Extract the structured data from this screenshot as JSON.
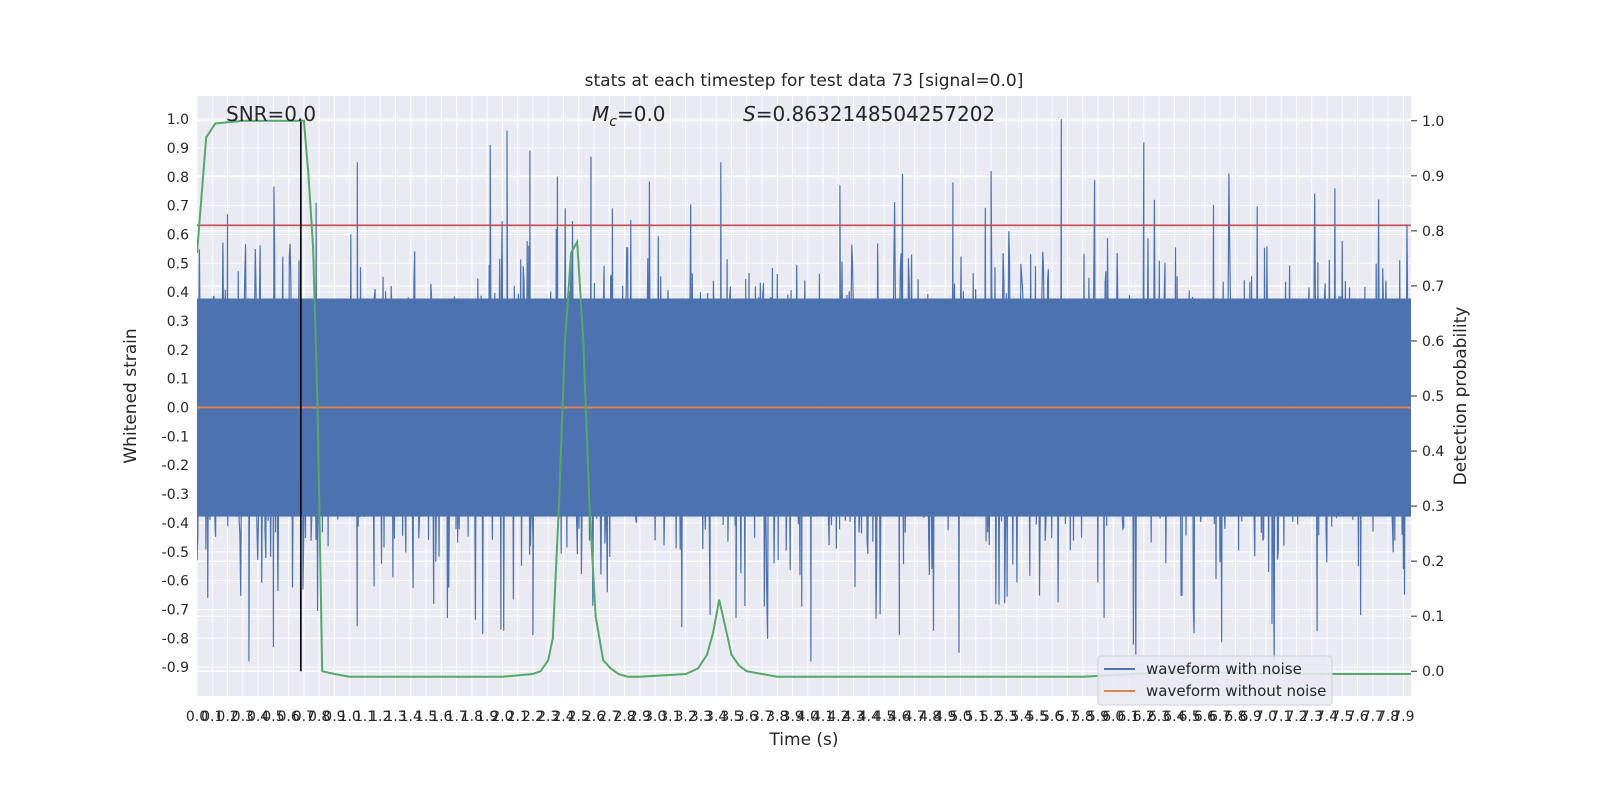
{
  "chart_data": {
    "type": "line",
    "title": "stats at each timestep for test data 73 [signal=0.0]",
    "xlabel": "Time (s)",
    "ylabel": "Whitened strain",
    "y2label": "Detection probability",
    "annotations": {
      "snr": "SNR=0.0",
      "mc_symbol": "M",
      "mc_sub": "c",
      "mc_value": "=0.0",
      "s_symbol": "S",
      "s_value": "=0.8632148504257202"
    },
    "xlim": [
      0.0,
      7.95
    ],
    "ylim": [
      -1.0,
      1.08
    ],
    "y2lim": [
      -0.045,
      1.045
    ],
    "grid": true,
    "legend": {
      "position": "bottom-right",
      "entries": [
        "waveform with noise",
        "waveform without noise"
      ]
    },
    "x_ticks": [
      "0.0",
      "0.1",
      "0.2",
      "0.3",
      "0.4",
      "0.5",
      "0.6",
      "0.7",
      "0.8",
      "0.9",
      "1.0",
      "1.1",
      "1.2",
      "1.3",
      "1.4",
      "1.5",
      "1.6",
      "1.7",
      "1.8",
      "1.9",
      "2.0",
      "2.1",
      "2.2",
      "2.3",
      "2.4",
      "2.5",
      "2.6",
      "2.7",
      "2.8",
      "2.9",
      "3.0",
      "3.1",
      "3.2",
      "3.3",
      "3.4",
      "3.5",
      "3.6",
      "3.7",
      "3.8",
      "3.9",
      "4.0",
      "4.1",
      "4.2",
      "4.3",
      "4.4",
      "4.5",
      "4.6",
      "4.7",
      "4.8",
      "4.9",
      "5.0",
      "5.1",
      "5.2",
      "5.3",
      "5.4",
      "5.5",
      "5.6",
      "5.7",
      "5.8",
      "5.9",
      "6.0",
      "6.1",
      "6.2",
      "6.3",
      "6.4",
      "6.5",
      "6.6",
      "6.7",
      "6.8",
      "6.9",
      "7.0",
      "7.1",
      "7.2",
      "7.3",
      "7.4",
      "7.5",
      "7.6",
      "7.7",
      "7.8",
      "7.9"
    ],
    "y_ticks": [
      "-0.9",
      "-0.8",
      "-0.7",
      "-0.6",
      "-0.5",
      "-0.4",
      "-0.3",
      "-0.2",
      "-0.1",
      "0.0",
      "0.1",
      "0.2",
      "0.3",
      "0.4",
      "0.5",
      "0.6",
      "0.7",
      "0.8",
      "0.9",
      "1.0"
    ],
    "y2_ticks": [
      "0.0",
      "0.1",
      "0.2",
      "0.3",
      "0.4",
      "0.5",
      "0.6",
      "0.7",
      "0.8",
      "0.9",
      "1.0"
    ],
    "series": [
      {
        "name": "waveform with noise",
        "color": "#4c72b0",
        "kind": "noise-envelope",
        "envelope_core": [
          -0.42,
          0.42
        ],
        "peaks": [
          {
            "t": 0.0,
            "v": -0.53
          },
          {
            "t": 0.07,
            "v": -0.66
          },
          {
            "t": 0.2,
            "v": 0.67
          },
          {
            "t": 0.34,
            "v": -0.88
          },
          {
            "t": 0.5,
            "v": -0.83
          },
          {
            "t": 0.68,
            "v": -0.75
          },
          {
            "t": 0.78,
            "v": 0.71
          },
          {
            "t": 1.05,
            "v": 0.85
          },
          {
            "t": 1.16,
            "v": -0.62
          },
          {
            "t": 1.55,
            "v": -0.68
          },
          {
            "t": 1.64,
            "v": -0.73
          },
          {
            "t": 1.92,
            "v": 0.91
          },
          {
            "t": 1.99,
            "v": -0.77
          },
          {
            "t": 2.03,
            "v": 0.96
          },
          {
            "t": 2.18,
            "v": 0.89
          },
          {
            "t": 2.2,
            "v": -0.79
          },
          {
            "t": 2.36,
            "v": 0.8
          },
          {
            "t": 2.58,
            "v": 0.87
          },
          {
            "t": 2.72,
            "v": 0.69
          },
          {
            "t": 3.36,
            "v": -0.72
          },
          {
            "t": 3.43,
            "v": 0.85
          },
          {
            "t": 3.53,
            "v": -0.73
          },
          {
            "t": 3.96,
            "v": -0.69
          },
          {
            "t": 4.02,
            "v": -0.88
          },
          {
            "t": 4.21,
            "v": 0.77
          },
          {
            "t": 4.6,
            "v": -0.79
          },
          {
            "t": 4.62,
            "v": 0.81
          },
          {
            "t": 4.95,
            "v": 0.78
          },
          {
            "t": 4.99,
            "v": -0.85
          },
          {
            "t": 5.2,
            "v": 0.82
          },
          {
            "t": 5.66,
            "v": 1.0
          },
          {
            "t": 5.94,
            "v": -0.73
          },
          {
            "t": 6.2,
            "v": 0.92
          },
          {
            "t": 7.04,
            "v": -0.75
          },
          {
            "t": 7.62,
            "v": -0.72
          },
          {
            "t": 7.9,
            "v": -0.56
          }
        ]
      },
      {
        "name": "waveform without noise",
        "color": "#dd8452",
        "x": [
          0.0,
          7.95
        ],
        "y": [
          0.0,
          0.0
        ]
      },
      {
        "name": "",
        "axis": "right",
        "color": "#55a868",
        "x": [
          0.0,
          0.06,
          0.12,
          0.3,
          0.5,
          0.68,
          0.7,
          0.73,
          0.76,
          0.79,
          0.82,
          0.9,
          1.0,
          1.5,
          2.0,
          2.2,
          2.25,
          2.3,
          2.33,
          2.37,
          2.41,
          2.45,
          2.49,
          2.53,
          2.57,
          2.61,
          2.66,
          2.71,
          2.76,
          2.82,
          2.9,
          3.2,
          3.28,
          3.34,
          3.38,
          3.42,
          3.46,
          3.5,
          3.55,
          3.6,
          3.7,
          3.8,
          4.2,
          5.0,
          5.8,
          6.5,
          7.0,
          7.5,
          7.95
        ],
        "y": [
          0.76,
          0.97,
          0.995,
          1.0,
          1.0,
          1.0,
          1.0,
          0.9,
          0.77,
          0.48,
          0.0,
          -0.005,
          -0.01,
          -0.01,
          -0.01,
          -0.005,
          0.0,
          0.02,
          0.06,
          0.3,
          0.6,
          0.76,
          0.78,
          0.6,
          0.3,
          0.1,
          0.02,
          0.005,
          -0.005,
          -0.01,
          -0.01,
          -0.005,
          0.005,
          0.03,
          0.07,
          0.13,
          0.08,
          0.03,
          0.01,
          0.0,
          -0.005,
          -0.01,
          -0.01,
          -0.01,
          -0.01,
          0.0,
          -0.005,
          -0.005,
          -0.005
        ]
      }
    ],
    "vlines": [
      {
        "x": 0.68,
        "color": "#000000"
      }
    ],
    "hlines": [
      {
        "y": 0.81,
        "color": "#c44e52"
      }
    ]
  }
}
